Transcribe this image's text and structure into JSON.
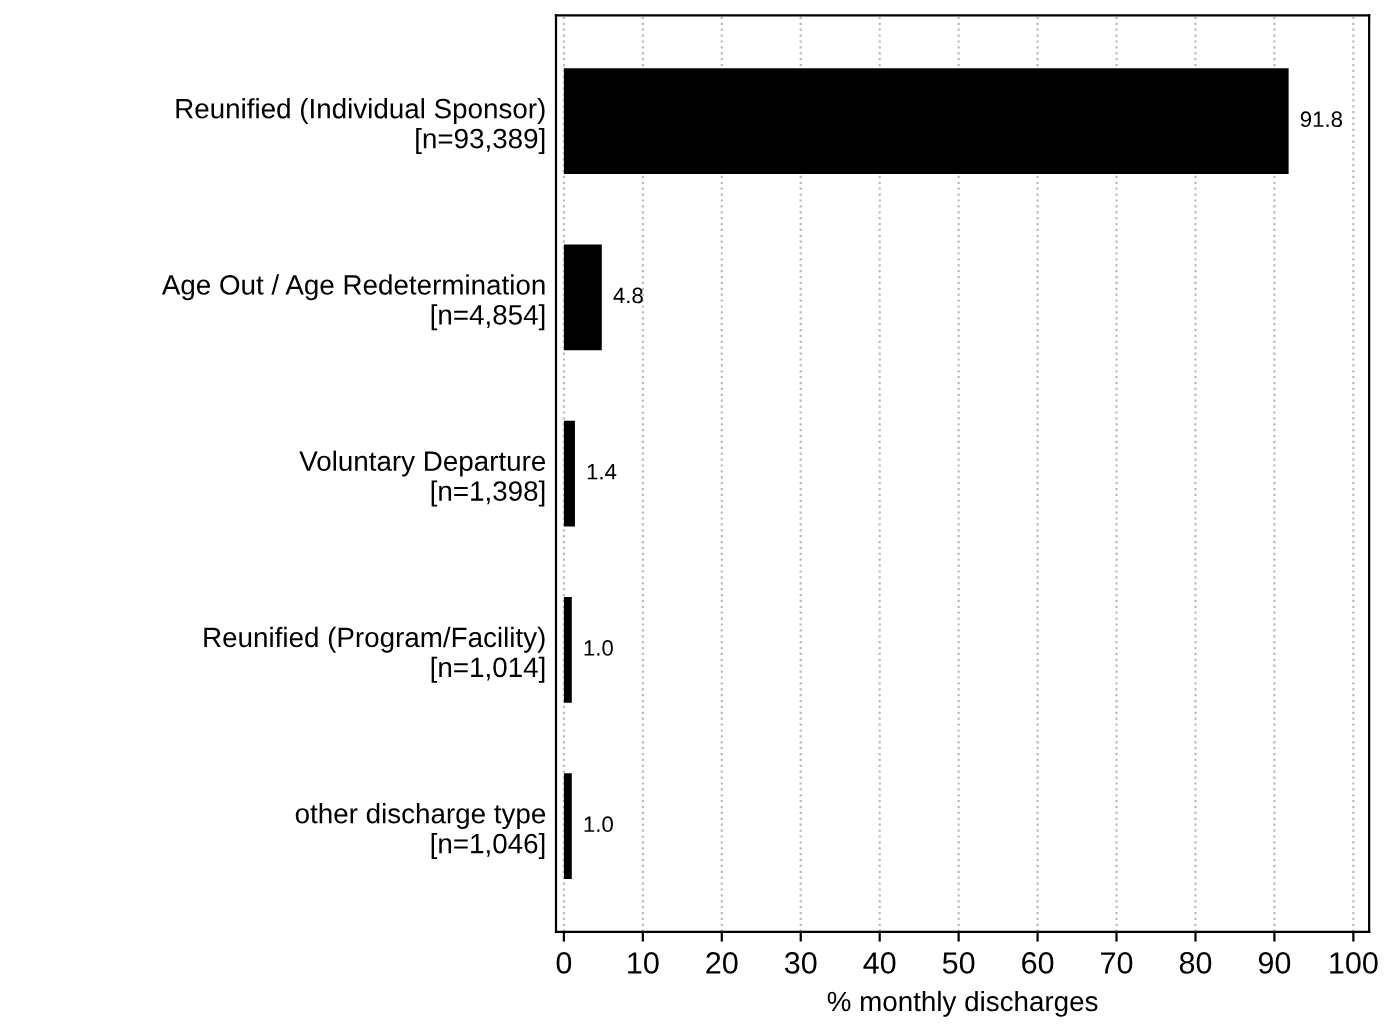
{
  "chart_data": {
    "type": "bar",
    "orientation": "horizontal",
    "xlabel": "% monthly discharges",
    "categories": [
      "Reunified (Individual Sponsor)\n[n=93,389]",
      "Age Out / Age Redetermination\n[n=4,854]",
      "Voluntary Departure\n[n=1,398]",
      "Reunified (Program/Facility)\n[n=1,014]",
      "other discharge type\n[n=1,046]"
    ],
    "values": [
      91.8,
      4.8,
      1.4,
      1.0,
      1.0
    ],
    "value_labels": [
      "91.8",
      "4.8",
      "1.4",
      "1.0",
      "1.0"
    ],
    "color": "#000000",
    "xlim": [
      -1,
      102
    ],
    "xticks": [
      0,
      10,
      20,
      30,
      40,
      50,
      60,
      70,
      80,
      90,
      100
    ],
    "grid": "x"
  }
}
